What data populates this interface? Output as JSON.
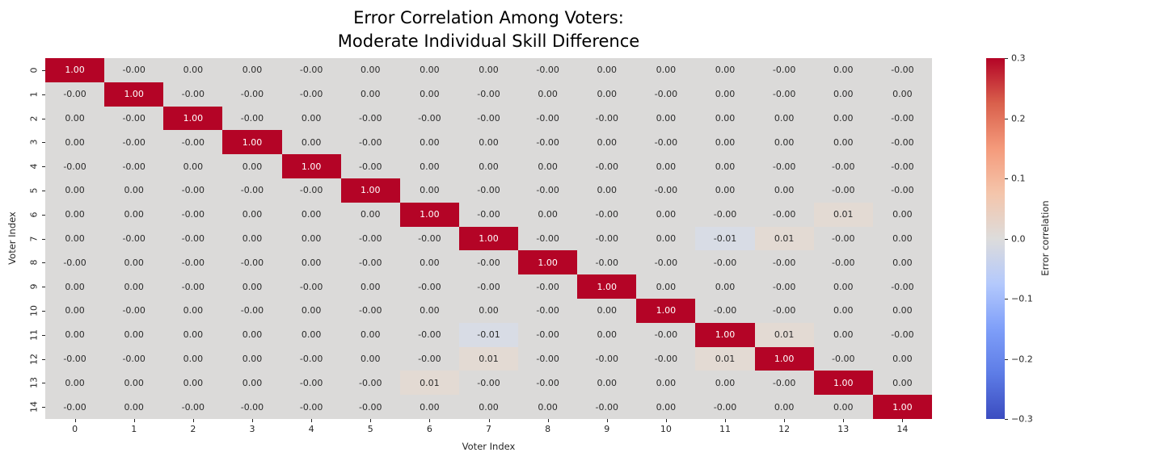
{
  "title": {
    "line1": "Error Correlation Among Voters:",
    "line2": "Moderate Individual Skill Difference"
  },
  "colors": {
    "figure_background": "#ffffff",
    "annotation_text": "#2b2b2b",
    "diagonal_text": "#ffffff",
    "tick_text": "#262626",
    "cell_colors": {
      "1.00": "#b40426",
      "0.01": "#e3dad3",
      "-0.01": "#d8dce5",
      "0.00": "#dbdad9",
      "-0.00": "#dbdad9"
    }
  },
  "chart_data": {
    "type": "heatmap",
    "title": "Error Correlation Among Voters:\nModerate Individual Skill Difference",
    "xlabel": "Voter Index",
    "ylabel": "Voter Index",
    "colormap": "coolwarm",
    "vmin": -0.3,
    "vmax": 0.3,
    "grid": false,
    "x_ticklabels": [
      "0",
      "1",
      "2",
      "3",
      "4",
      "5",
      "6",
      "7",
      "8",
      "9",
      "10",
      "11",
      "12",
      "13",
      "14"
    ],
    "y_ticklabels": [
      "0",
      "1",
      "2",
      "3",
      "4",
      "5",
      "6",
      "7",
      "8",
      "9",
      "10",
      "11",
      "12",
      "13",
      "14"
    ],
    "values": [
      [
        "1.00",
        "-0.00",
        "0.00",
        "0.00",
        "-0.00",
        "0.00",
        "0.00",
        "0.00",
        "-0.00",
        "0.00",
        "0.00",
        "0.00",
        "-0.00",
        "0.00",
        "-0.00"
      ],
      [
        "-0.00",
        "1.00",
        "-0.00",
        "-0.00",
        "-0.00",
        "0.00",
        "0.00",
        "-0.00",
        "0.00",
        "0.00",
        "-0.00",
        "0.00",
        "-0.00",
        "0.00",
        "0.00"
      ],
      [
        "0.00",
        "-0.00",
        "1.00",
        "-0.00",
        "0.00",
        "-0.00",
        "-0.00",
        "-0.00",
        "-0.00",
        "-0.00",
        "0.00",
        "0.00",
        "0.00",
        "0.00",
        "-0.00"
      ],
      [
        "0.00",
        "-0.00",
        "-0.00",
        "1.00",
        "0.00",
        "-0.00",
        "0.00",
        "0.00",
        "-0.00",
        "0.00",
        "-0.00",
        "0.00",
        "0.00",
        "0.00",
        "-0.00"
      ],
      [
        "-0.00",
        "-0.00",
        "0.00",
        "0.00",
        "1.00",
        "-0.00",
        "0.00",
        "0.00",
        "0.00",
        "-0.00",
        "0.00",
        "0.00",
        "-0.00",
        "-0.00",
        "-0.00"
      ],
      [
        "0.00",
        "0.00",
        "-0.00",
        "-0.00",
        "-0.00",
        "1.00",
        "0.00",
        "-0.00",
        "-0.00",
        "0.00",
        "-0.00",
        "0.00",
        "0.00",
        "-0.00",
        "-0.00"
      ],
      [
        "0.00",
        "0.00",
        "-0.00",
        "0.00",
        "0.00",
        "0.00",
        "1.00",
        "-0.00",
        "0.00",
        "-0.00",
        "0.00",
        "-0.00",
        "-0.00",
        "0.01",
        "0.00"
      ],
      [
        "0.00",
        "-0.00",
        "-0.00",
        "0.00",
        "0.00",
        "-0.00",
        "-0.00",
        "1.00",
        "-0.00",
        "-0.00",
        "0.00",
        "-0.01",
        "0.01",
        "-0.00",
        "0.00"
      ],
      [
        "-0.00",
        "0.00",
        "-0.00",
        "-0.00",
        "0.00",
        "-0.00",
        "0.00",
        "-0.00",
        "1.00",
        "-0.00",
        "-0.00",
        "-0.00",
        "-0.00",
        "-0.00",
        "0.00"
      ],
      [
        "0.00",
        "0.00",
        "-0.00",
        "0.00",
        "-0.00",
        "0.00",
        "-0.00",
        "-0.00",
        "-0.00",
        "1.00",
        "0.00",
        "0.00",
        "-0.00",
        "0.00",
        "-0.00"
      ],
      [
        "0.00",
        "-0.00",
        "0.00",
        "-0.00",
        "0.00",
        "-0.00",
        "0.00",
        "0.00",
        "-0.00",
        "0.00",
        "1.00",
        "-0.00",
        "-0.00",
        "0.00",
        "0.00"
      ],
      [
        "0.00",
        "0.00",
        "0.00",
        "0.00",
        "0.00",
        "0.00",
        "-0.00",
        "-0.01",
        "-0.00",
        "0.00",
        "-0.00",
        "1.00",
        "0.01",
        "0.00",
        "-0.00"
      ],
      [
        "-0.00",
        "-0.00",
        "0.00",
        "0.00",
        "-0.00",
        "0.00",
        "-0.00",
        "0.01",
        "-0.00",
        "-0.00",
        "-0.00",
        "0.01",
        "1.00",
        "-0.00",
        "0.00"
      ],
      [
        "0.00",
        "0.00",
        "0.00",
        "0.00",
        "-0.00",
        "-0.00",
        "0.01",
        "-0.00",
        "-0.00",
        "0.00",
        "0.00",
        "0.00",
        "-0.00",
        "1.00",
        "0.00"
      ],
      [
        "-0.00",
        "0.00",
        "-0.00",
        "-0.00",
        "-0.00",
        "-0.00",
        "0.00",
        "0.00",
        "0.00",
        "-0.00",
        "0.00",
        "-0.00",
        "0.00",
        "0.00",
        "1.00"
      ]
    ],
    "colorbar": {
      "label": "Error correlation",
      "ticks": [
        "0.3",
        "0.2",
        "0.1",
        "0.0",
        "−0.1",
        "−0.2",
        "−0.3"
      ],
      "position": "right"
    }
  }
}
